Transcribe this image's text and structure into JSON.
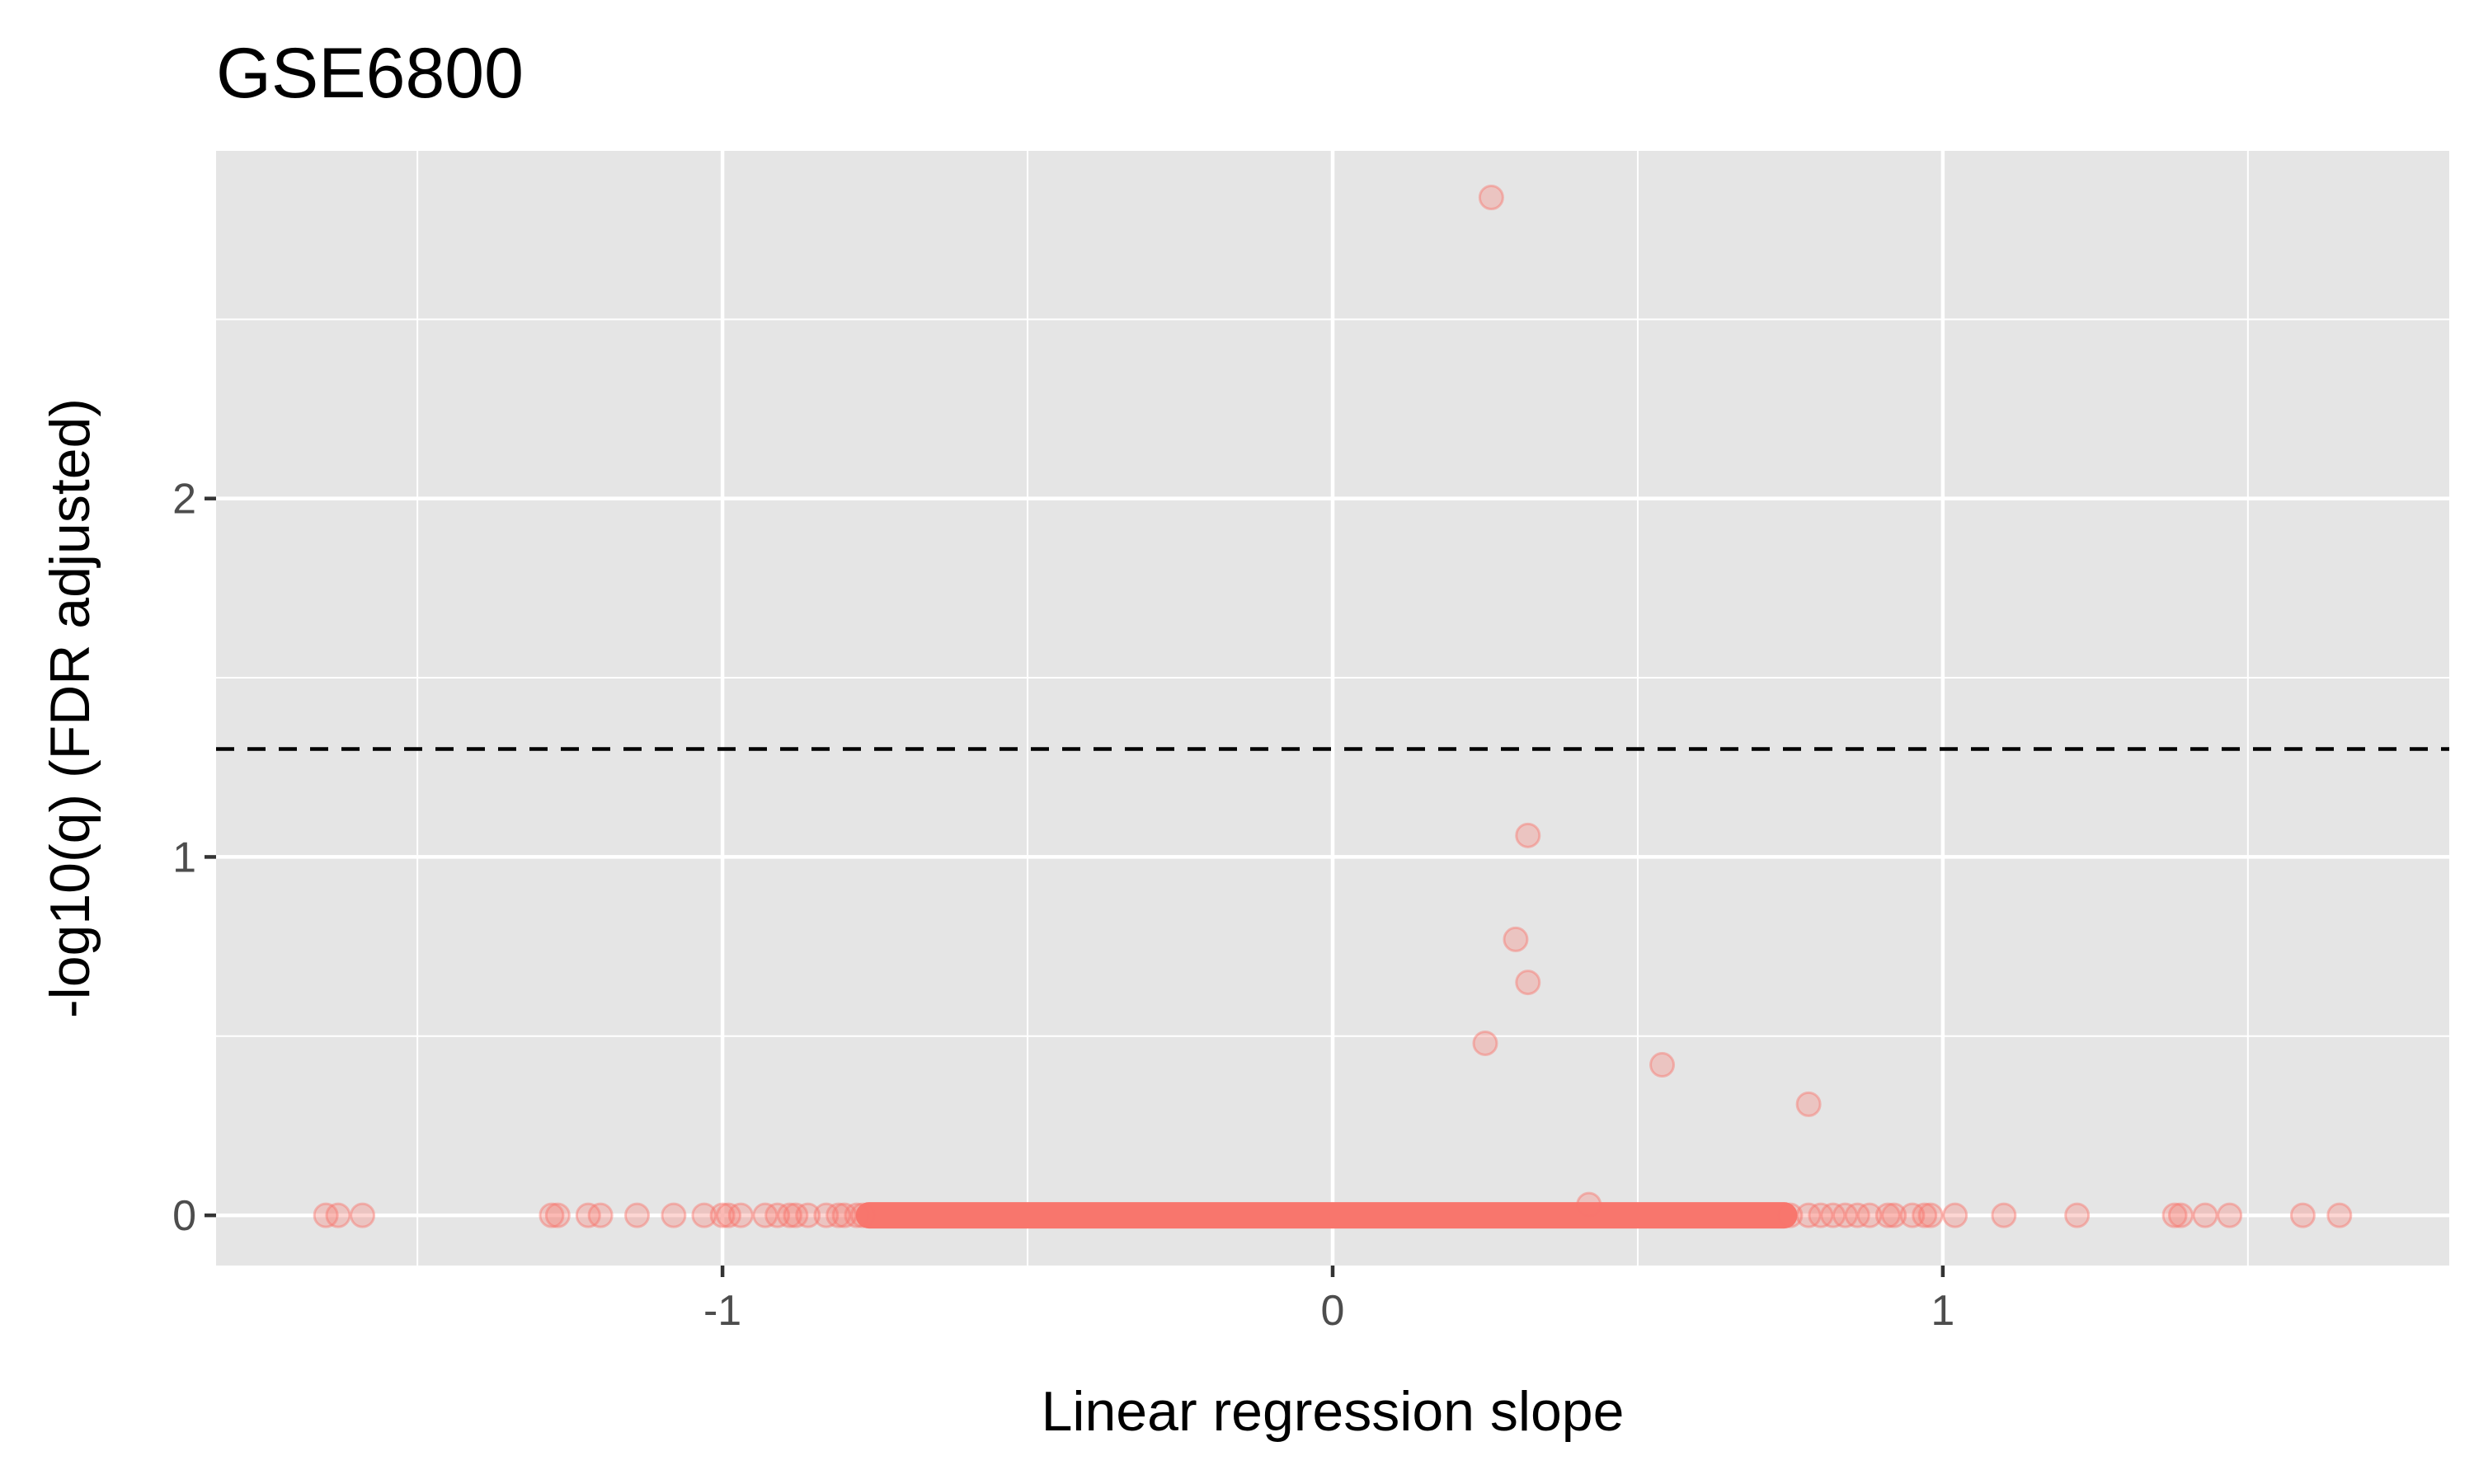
{
  "chart_data": {
    "type": "scatter",
    "title": "GSE6800",
    "xlabel": "Linear regression slope",
    "ylabel": "-log10(q) (FDR adjusted)",
    "xlim": [
      -1.83,
      1.83
    ],
    "ylim": [
      -0.14,
      2.97
    ],
    "x_ticks": [
      -1,
      0,
      1
    ],
    "x_tick_labels": [
      "-1",
      "0",
      "1"
    ],
    "y_ticks": [
      0,
      1,
      2
    ],
    "y_tick_labels": [
      "0",
      "1",
      "2"
    ],
    "x_minor_gridlines": [
      -1.5,
      -0.5,
      0.5,
      1.5
    ],
    "y_minor_gridlines": [
      0.5,
      1.5,
      2.5
    ],
    "grid": true,
    "threshold_line": {
      "y": 1.301,
      "style": "dashed",
      "color": "#000000"
    },
    "point_color": "#F8766D",
    "point_alpha": 0.3,
    "panel_background": "#E5E5E5",
    "series": [
      {
        "values": [
          {
            "x": 0.26,
            "y": 2.84
          },
          {
            "x": 0.32,
            "y": 1.06
          },
          {
            "x": 0.3,
            "y": 0.77
          },
          {
            "x": 0.32,
            "y": 0.65
          },
          {
            "x": 0.25,
            "y": 0.48
          },
          {
            "x": 0.54,
            "y": 0.42
          },
          {
            "x": 0.78,
            "y": 0.31
          },
          {
            "x": 0.42,
            "y": 0.03
          },
          {
            "x": -1.65,
            "y": 0
          },
          {
            "x": -1.63,
            "y": 0
          },
          {
            "x": -1.59,
            "y": 0
          },
          {
            "x": -1.28,
            "y": 0
          },
          {
            "x": -1.27,
            "y": 0
          },
          {
            "x": -1.22,
            "y": 0
          },
          {
            "x": -1.2,
            "y": 0
          },
          {
            "x": -1.14,
            "y": 0
          },
          {
            "x": -1.08,
            "y": 0
          },
          {
            "x": -1.03,
            "y": 0
          },
          {
            "x": -1.0,
            "y": 0
          },
          {
            "x": -0.99,
            "y": 0
          },
          {
            "x": -0.97,
            "y": 0
          },
          {
            "x": -0.93,
            "y": 0
          },
          {
            "x": -0.91,
            "y": 0
          },
          {
            "x": -0.89,
            "y": 0
          },
          {
            "x": -0.88,
            "y": 0
          },
          {
            "x": -0.86,
            "y": 0
          },
          {
            "x": -0.83,
            "y": 0
          },
          {
            "x": -0.81,
            "y": 0
          },
          {
            "x": -0.8,
            "y": 0
          },
          {
            "x": -0.78,
            "y": 0
          },
          {
            "x": -0.77,
            "y": 0
          },
          {
            "x": 0.75,
            "y": 0
          },
          {
            "x": 0.78,
            "y": 0
          },
          {
            "x": 0.8,
            "y": 0
          },
          {
            "x": 0.82,
            "y": 0
          },
          {
            "x": 0.84,
            "y": 0
          },
          {
            "x": 0.86,
            "y": 0
          },
          {
            "x": 0.88,
            "y": 0
          },
          {
            "x": 0.91,
            "y": 0
          },
          {
            "x": 0.92,
            "y": 0
          },
          {
            "x": 0.95,
            "y": 0
          },
          {
            "x": 0.97,
            "y": 0
          },
          {
            "x": 0.98,
            "y": 0
          },
          {
            "x": 1.02,
            "y": 0
          },
          {
            "x": 1.1,
            "y": 0
          },
          {
            "x": 1.22,
            "y": 0
          },
          {
            "x": 1.38,
            "y": 0
          },
          {
            "x": 1.39,
            "y": 0
          },
          {
            "x": 1.43,
            "y": 0
          },
          {
            "x": 1.47,
            "y": 0
          },
          {
            "x": 1.59,
            "y": 0
          },
          {
            "x": 1.65,
            "y": 0
          }
        ],
        "dense_band": {
          "x_from": -0.76,
          "x_to": 0.74,
          "y": 0
        }
      }
    ]
  }
}
